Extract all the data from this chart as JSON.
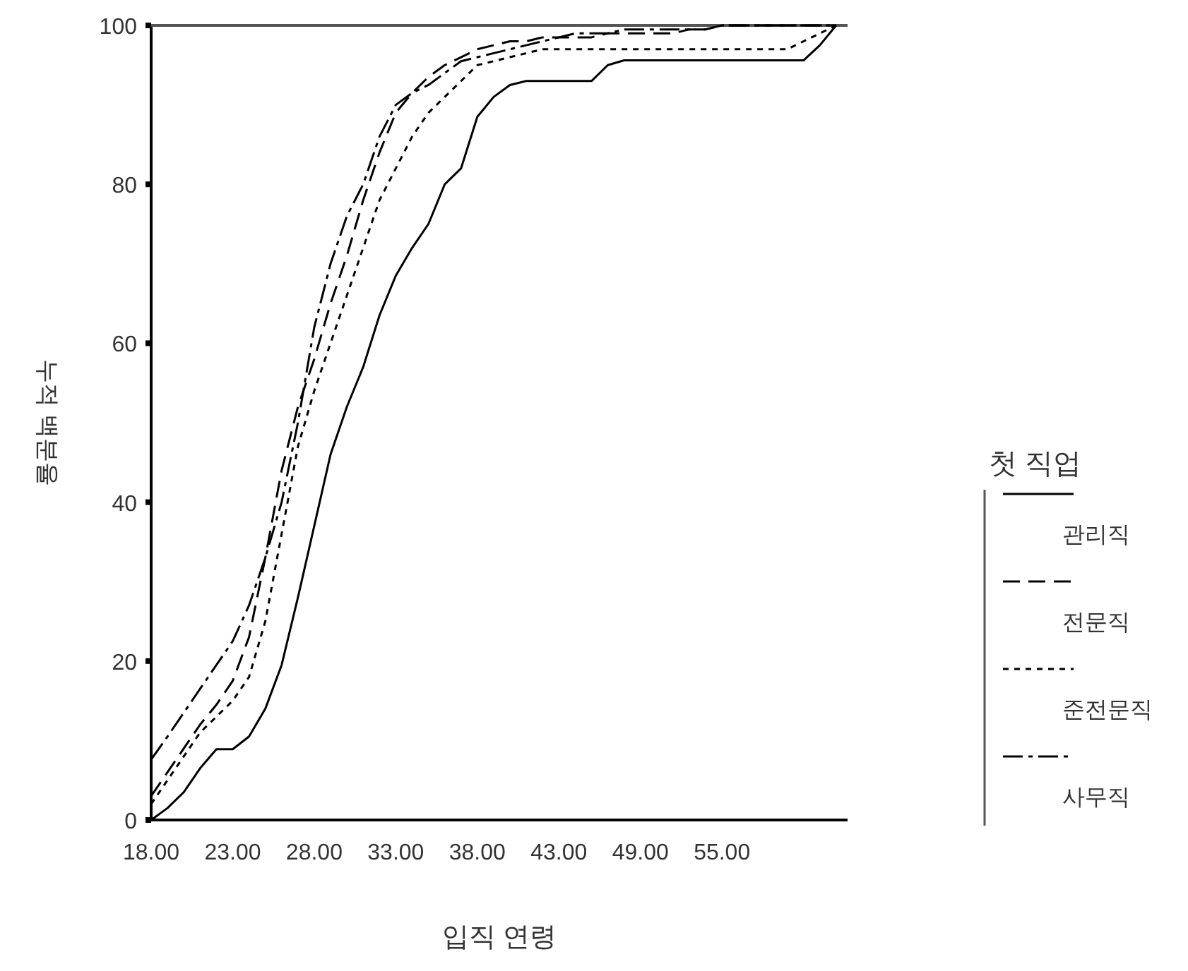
{
  "chart_data": {
    "type": "line",
    "xlabel": "입직 연령",
    "ylabel": "누적 백분율",
    "legend_title": "첫 직업",
    "legend": "right",
    "grid": false,
    "categories": [
      "18.00",
      null,
      null,
      null,
      null,
      "23.00",
      null,
      null,
      null,
      null,
      "28.00",
      null,
      null,
      null,
      null,
      "33.00",
      null,
      null,
      null,
      null,
      "38.00",
      null,
      null,
      null,
      null,
      "43.00",
      null,
      null,
      null,
      null,
      "49.00",
      null,
      null,
      null,
      null,
      "55.00",
      null,
      null,
      null,
      null,
      null,
      null,
      null
    ],
    "ylim": [
      0,
      100
    ],
    "yticks": [
      0,
      20,
      40,
      60,
      80,
      100
    ],
    "series": [
      {
        "name": "관리직",
        "color": "#000000",
        "line_style": "solid",
        "values": [
          0,
          1.5,
          3.5,
          6.5,
          8.9,
          8.9,
          10.5,
          14,
          19.5,
          28,
          37,
          46,
          52,
          57,
          63.5,
          68.5,
          72,
          75,
          80,
          82,
          88.5,
          91,
          92.5,
          93,
          93,
          93,
          93,
          93,
          95,
          95.6,
          95.6,
          95.6,
          95.6,
          95.6,
          95.6,
          95.6,
          95.6,
          95.6,
          95.6,
          95.6,
          95.6,
          97.5,
          100
        ]
      },
      {
        "name": "전문직",
        "color": "#000000",
        "line_style": "dashed",
        "values": [
          3,
          6,
          9,
          12,
          14.5,
          17.5,
          23,
          33,
          44,
          52,
          58,
          65,
          71,
          78,
          84,
          89,
          91.5,
          93.5,
          95,
          96,
          97,
          97.5,
          98,
          98,
          98.5,
          98.5,
          98.5,
          98.5,
          99,
          99,
          99,
          99,
          99,
          99.5,
          99.5,
          100,
          100,
          100,
          100,
          100,
          100,
          100,
          100
        ]
      },
      {
        "name": "준전문직",
        "color": "#000000",
        "line_style": "dotted",
        "values": [
          2,
          5,
          8,
          11,
          13,
          15,
          18,
          25,
          36,
          47,
          54,
          60,
          66,
          72,
          78,
          82,
          86,
          89,
          91,
          93,
          95,
          95.5,
          96,
          96.5,
          97,
          97,
          97,
          97,
          97,
          97,
          97,
          97,
          97,
          97,
          97,
          97,
          97,
          97,
          97,
          97,
          98,
          99,
          100
        ]
      },
      {
        "name": "사무직",
        "color": "#000000",
        "line_style": "dashdot",
        "values": [
          7.6,
          10.5,
          13.5,
          16.5,
          19.5,
          22.5,
          27,
          33,
          40,
          50,
          62,
          70,
          76,
          80,
          86,
          90,
          91.5,
          92.5,
          94,
          95.5,
          96,
          96.5,
          97,
          97.5,
          98,
          98.5,
          99,
          99,
          99,
          99.5,
          99.5,
          99.5,
          99.5,
          99.5,
          99.5,
          100,
          100,
          100,
          100,
          100,
          100,
          100,
          100
        ]
      }
    ]
  }
}
